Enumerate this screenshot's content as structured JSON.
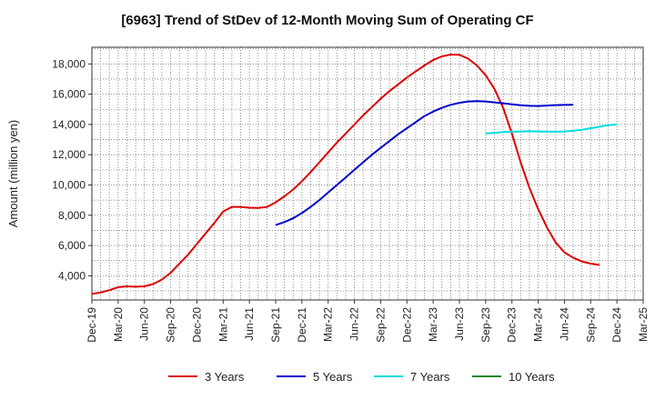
{
  "chart_data": {
    "type": "line",
    "title": "[6963]  Trend of StDev of 12-Month Moving Sum of Operating CF",
    "xlabel": "",
    "ylabel": "Amount (million yen)",
    "x_tick_labels": [
      "Dec-19",
      "Mar-20",
      "Jun-20",
      "Sep-20",
      "Dec-20",
      "Mar-21",
      "Jun-21",
      "Sep-21",
      "Dec-21",
      "Mar-22",
      "Jun-22",
      "Sep-22",
      "Dec-22",
      "Mar-23",
      "Jun-23",
      "Sep-23",
      "Dec-23",
      "Mar-24",
      "Jun-24",
      "Sep-24",
      "Dec-24",
      "Mar-25"
    ],
    "y_ticks": [
      4000,
      6000,
      8000,
      10000,
      12000,
      14000,
      16000,
      18000
    ],
    "y_tick_labels": [
      "4,000",
      "6,000",
      "8,000",
      "10,000",
      "12,000",
      "14,000",
      "16,000",
      "18,000"
    ],
    "ylim": [
      2400,
      19100
    ],
    "grid": true,
    "legend_position": "bottom",
    "series": [
      {
        "name": "3 Years",
        "color": "#dd0000",
        "start_index": 0,
        "values": [
          2800,
          2900,
          3050,
          3250,
          3300,
          3280,
          3300,
          3450,
          3750,
          4200,
          4800,
          5400,
          6100,
          6800,
          7500,
          8250,
          8550,
          8550,
          8500,
          8480,
          8550,
          8850,
          9250,
          9700,
          10250,
          10850,
          11500,
          12150,
          12800,
          13400,
          14000,
          14600,
          15150,
          15700,
          16200,
          16650,
          17100,
          17500,
          17900,
          18250,
          18500,
          18620,
          18600,
          18350,
          17900,
          17250,
          16350,
          15100,
          13400,
          11500,
          9800,
          8400,
          7200,
          6200,
          5550,
          5200,
          4950,
          4800,
          4720
        ]
      },
      {
        "name": "5 Years",
        "color": "#0000cc",
        "start_index": 21,
        "values": [
          7350,
          7550,
          7800,
          8150,
          8550,
          9000,
          9500,
          10000,
          10500,
          11000,
          11500,
          12000,
          12450,
          12900,
          13350,
          13750,
          14150,
          14550,
          14850,
          15100,
          15300,
          15430,
          15520,
          15540,
          15520,
          15460,
          15400,
          15330,
          15270,
          15230,
          15220,
          15250,
          15280,
          15290,
          15300
        ]
      },
      {
        "name": "7 Years",
        "color": "#00dddd",
        "start_index": 45,
        "values": [
          13400,
          13450,
          13500,
          13520,
          13540,
          13550,
          13540,
          13530,
          13520,
          13540,
          13580,
          13650,
          13750,
          13850,
          13950,
          14000
        ]
      },
      {
        "name": "10 Years",
        "color": "#228822",
        "start_index": 0,
        "values": []
      }
    ]
  }
}
